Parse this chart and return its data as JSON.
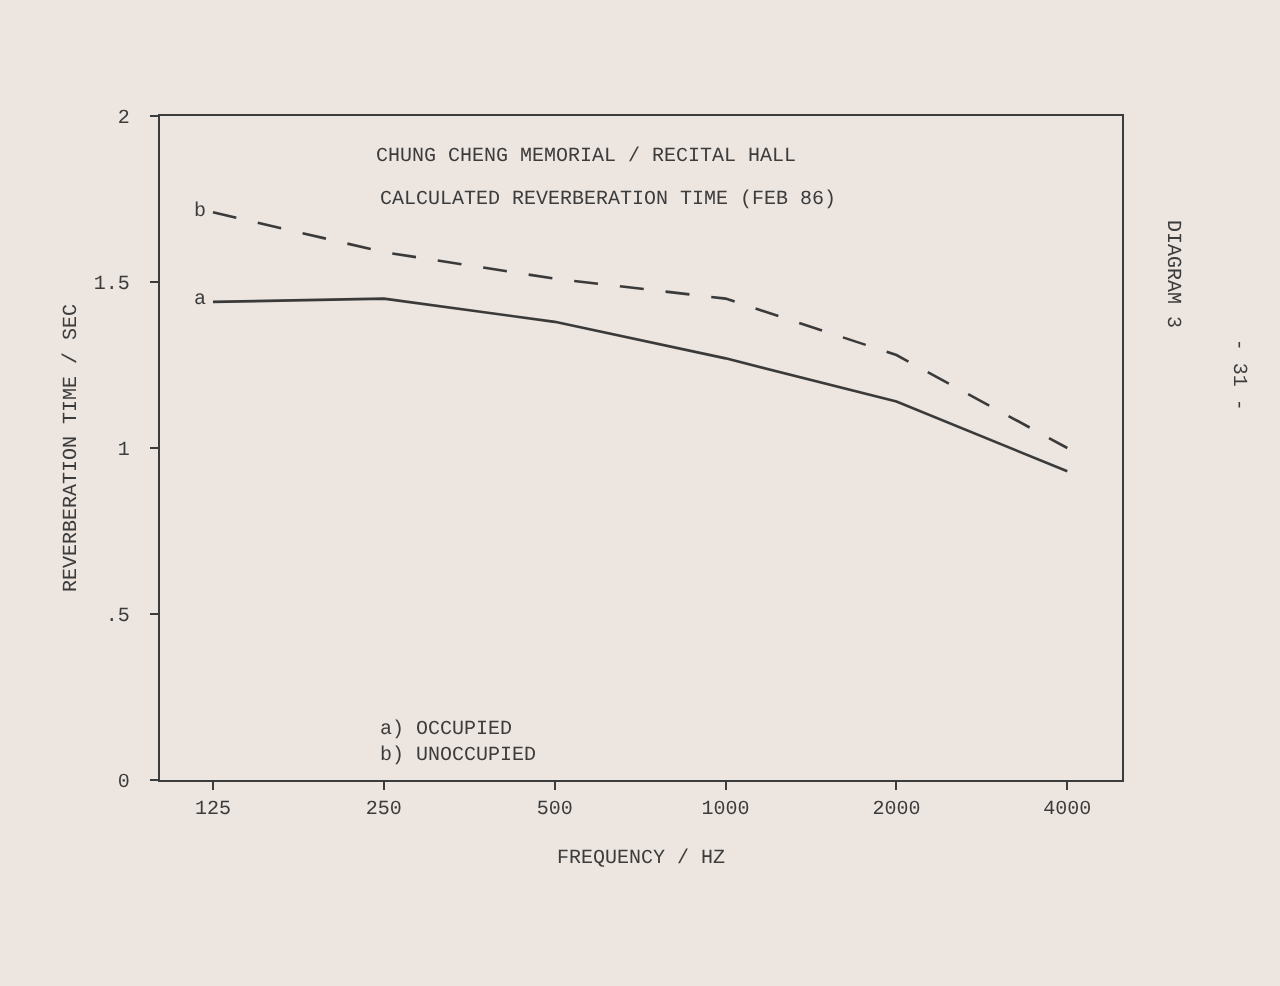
{
  "chart_data": {
    "type": "line",
    "title": "CHUNG CHENG MEMORIAL / RECITAL HALL",
    "subtitle": "CALCULATED REVERBERATION TIME (FEB 86)",
    "xlabel": "FREQUENCY / HZ",
    "ylabel": "REVERBERATION TIME / SEC",
    "categories": [
      "125",
      "250",
      "500",
      "1000",
      "2000",
      "4000"
    ],
    "series": [
      {
        "name": "a",
        "color": "#3a3a3a",
        "line_style": "solid",
        "values": [
          1.44,
          1.45,
          1.38,
          1.27,
          1.14,
          0.93
        ]
      },
      {
        "name": "b",
        "color": "#3a3a3a",
        "line_style": "dashed",
        "values": [
          1.71,
          1.59,
          1.51,
          1.45,
          1.28,
          1.0
        ]
      }
    ],
    "ylim": [
      0,
      2
    ],
    "yticks": [
      0,
      {
        "value": 0.5,
        "label": ".5"
      },
      1,
      1.5,
      2
    ],
    "legend": false,
    "annotations": [
      "a) OCCUPIED",
      "b) UNOCCUPIED",
      "DIAGRAM 3",
      "- 31 -"
    ]
  }
}
